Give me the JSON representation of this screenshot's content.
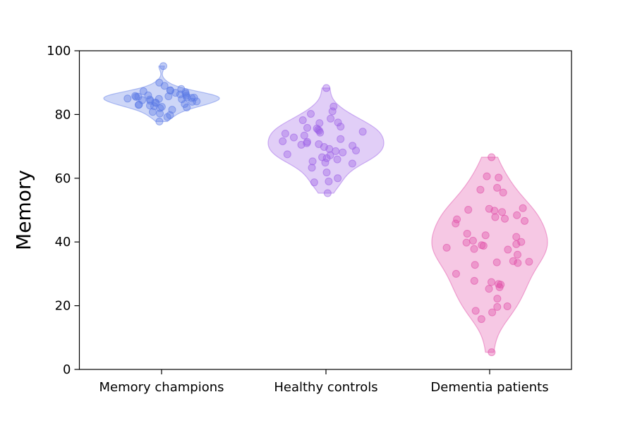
{
  "chart_data": {
    "type": "violin",
    "ylabel": "Memory",
    "ylim": [
      0,
      100
    ],
    "yticks": [
      0,
      20,
      40,
      60,
      80,
      100
    ],
    "categories": [
      "Memory champions",
      "Healthy controls",
      "Dementia patients"
    ],
    "grid": false,
    "series": [
      {
        "category": "Memory champions",
        "color": "#5a78e6",
        "points": [
          95.2,
          90.0,
          89.0,
          88.0,
          87.6,
          87.5,
          87.3,
          87.0,
          86.8,
          86.5,
          86.3,
          86.0,
          85.9,
          85.8,
          85.7,
          85.6,
          85.5,
          85.4,
          85.3,
          85.2,
          85.0,
          84.9,
          84.8,
          84.7,
          84.5,
          84.3,
          84.1,
          84.0,
          83.8,
          83.6,
          83.3,
          83.1,
          83.0,
          82.8,
          82.6,
          82.4,
          82.2,
          82.0,
          81.5,
          80.8,
          80.3,
          79.8,
          79.2,
          77.8
        ]
      },
      {
        "category": "Healthy controls",
        "color": "#9a5ee6",
        "points": [
          88.3,
          82.5,
          81.0,
          80.2,
          78.7,
          78.2,
          77.5,
          77.3,
          76.2,
          75.8,
          75.6,
          75.2,
          74.9,
          74.6,
          74.3,
          74.0,
          73.4,
          72.8,
          72.3,
          71.6,
          71.4,
          71.0,
          70.7,
          70.5,
          70.2,
          69.8,
          69.2,
          68.7,
          68.5,
          68.1,
          67.5,
          67.2,
          66.6,
          66.3,
          65.9,
          65.3,
          64.9,
          64.6,
          63.3,
          61.8,
          60.0,
          59.0,
          58.7,
          55.3
        ]
      },
      {
        "category": "Dementia patients",
        "color": "#e04aa5",
        "points": [
          66.6,
          60.6,
          60.2,
          57.0,
          56.4,
          55.5,
          50.6,
          50.4,
          50.1,
          49.8,
          49.4,
          48.4,
          47.8,
          47.3,
          47.1,
          46.6,
          45.8,
          42.6,
          42.1,
          41.6,
          40.4,
          40.0,
          39.8,
          39.3,
          39.0,
          38.8,
          38.2,
          37.8,
          37.6,
          36.0,
          34.0,
          33.8,
          33.6,
          33.4,
          32.8,
          30.0,
          27.8,
          27.4,
          26.8,
          26.6,
          25.8,
          25.3,
          22.2,
          19.8,
          19.6,
          18.4,
          17.9,
          15.8,
          5.4
        ]
      }
    ]
  }
}
